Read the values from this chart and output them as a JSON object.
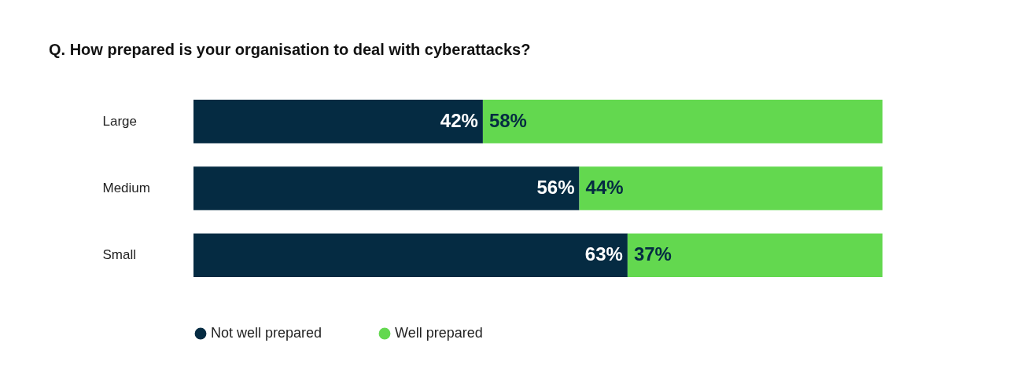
{
  "chart_data": {
    "type": "bar",
    "orientation": "horizontal",
    "stacked": true,
    "title": "Q. How prepared is your organisation to deal with cyberattacks?",
    "categories": [
      "Large",
      "Medium",
      "Small"
    ],
    "series": [
      {
        "name": "Not well prepared",
        "color": "#052b42",
        "values": [
          42,
          56,
          63
        ],
        "value_labels": [
          "42%",
          "56%",
          "63%"
        ]
      },
      {
        "name": "Well prepared",
        "color": "#63d84f",
        "values": [
          58,
          44,
          37
        ],
        "value_labels": [
          "58%",
          "44%",
          "37%"
        ]
      }
    ],
    "tick_labels": "y",
    "legend": "bottom"
  }
}
